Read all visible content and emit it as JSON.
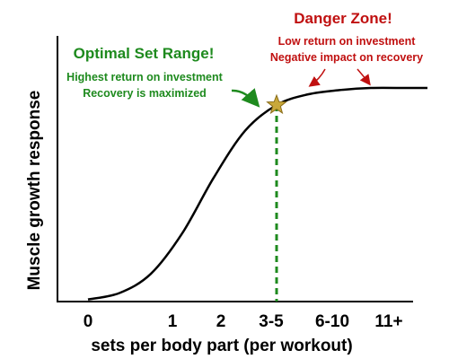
{
  "chart_data": {
    "type": "line",
    "xlabel": "sets per body part (per workout)",
    "ylabel": "Muscle growth response",
    "x_tick_labels": [
      "0",
      "1",
      "2",
      "3-5",
      "6-10",
      "11+"
    ],
    "curve": {
      "shape": "sigmoid",
      "x": [
        0,
        0.5,
        1,
        1.5,
        2,
        2.5,
        3,
        3.5,
        4,
        4.5,
        5
      ],
      "y": [
        0.01,
        0.04,
        0.13,
        0.32,
        0.58,
        0.8,
        0.92,
        0.97,
        0.99,
        1.0,
        1.0
      ]
    },
    "optimal_marker": {
      "x": 3,
      "y": 0.92,
      "marker": "star-icon",
      "line_style": "dashed"
    },
    "colors": {
      "curve": "#000000",
      "optimal": "#1e8a1e",
      "danger": "#c01010",
      "star": "#c9a83a"
    },
    "grid": false,
    "annotations": {
      "optimal": {
        "title": "Optimal Set Range!",
        "line1": "Highest return on investment",
        "line2": "Recovery is maximized"
      },
      "danger": {
        "title": "Danger Zone!",
        "line1": "Low return on investment",
        "line2": "Negative impact on recovery"
      }
    }
  }
}
